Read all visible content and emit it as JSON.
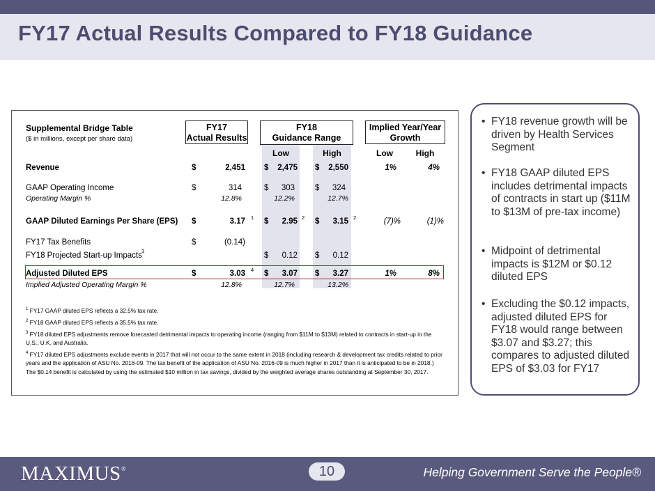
{
  "title": "FY17 Actual Results Compared to FY18 Guidance",
  "table": {
    "name": "Supplemental Bridge Table",
    "subtitle": "($ in millions, except per share data)",
    "col_fy17": "FY17\nActual Results",
    "col_fy18": "FY18\nGuidance Range",
    "col_growth": "Implied  Year/Year\nGrowth",
    "sub_low": "Low",
    "sub_high": "High",
    "sub_glow": "Low",
    "sub_ghigh": "High",
    "dollar": "$",
    "rows": {
      "revenue": {
        "label": "Revenue",
        "fy17": "2,451",
        "low": "2,475",
        "high": "2,550",
        "glow": "1%",
        "ghigh": "4%"
      },
      "gaap_oi": {
        "label": "GAAP Operating Income",
        "fy17": "314",
        "low": "303",
        "high": "324"
      },
      "op_margin": {
        "label": "Operating Margin %",
        "fy17": "12.8%",
        "low": "12.2%",
        "high": "12.7%"
      },
      "gaap_eps": {
        "label": "GAAP Diluted Earnings Per Share (EPS)",
        "fy17": "3.17",
        "fy17_note": "1",
        "low": "2.95",
        "low_note": "2",
        "high": "3.15",
        "high_note": "2",
        "glow": "(7)%",
        "ghigh": "(1)%"
      },
      "tax": {
        "label": "FY17 Tax Benefits",
        "fy17": "(0.14)"
      },
      "startup": {
        "label": "FY18 Projected Start-up Impacts",
        "label_note": "3",
        "low": "0.12",
        "high": "0.12"
      },
      "adj_eps": {
        "label": "Adjusted Diluted EPS",
        "fy17": "3.03",
        "fy17_note": "4",
        "low": "3.07",
        "high": "3.27",
        "glow": "1%",
        "ghigh": "8%"
      },
      "adj_margin": {
        "label": "Implied Adjusted Operating Margin %",
        "fy17": "12.8%",
        "low": "12.7%",
        "high": "13.2%"
      }
    },
    "footnotes": [
      {
        "num": "1",
        "text": "FY17 GAAP diluted EPS reflects a 32.5% tax rate."
      },
      {
        "num": "2",
        "text": "FY18 GAAP diluted EPS reflects a 35.5% tax rate."
      },
      {
        "num": "3",
        "text": "FY18 diluted EPS adjustments remove forecasted detrimental impacts to operating income (ranging from $11M to $13M) related to contracts in start-up in the U.S., U.K. and Australia."
      },
      {
        "num": "4",
        "text": "FY17 diluted EPS adjustments exclude events in 2017 that will not occur to the same extent in 2018 (including research & development tax credits related to prior years and the application of ASU No. 2016-09. The tax benefit of the application of ASU No. 2016-09 is much higher in 2017 than it is anticipated to be in 2018.) The $0.14 benefit is calculated by using the estimated $10 million in tax savings, divided by the weighted average shares outstanding at September 30, 2017."
      }
    ]
  },
  "bullets": [
    "FY18 revenue growth will be driven by Health Services Segment",
    "FY18 GAAP diluted EPS includes detrimental impacts of contracts in start up ($11M to $13M of pre-tax income)",
    "Midpoint of detrimental impacts is $12M or $0.12 diluted EPS",
    "Excluding the $0.12 impacts, adjusted diluted EPS for FY18 would range between $3.07 and $3.27; this compares to adjusted diluted EPS of $3.03 for FY17"
  ],
  "bullet_char": "•",
  "footer": {
    "logo": "MAXIMUS",
    "logo_mark": "®",
    "page": "10",
    "tagline": "Helping Government Serve the People®"
  },
  "colors": {
    "accent": "#4d4d73",
    "band": "#e3e3ee",
    "highlight_border": "#b32030"
  }
}
